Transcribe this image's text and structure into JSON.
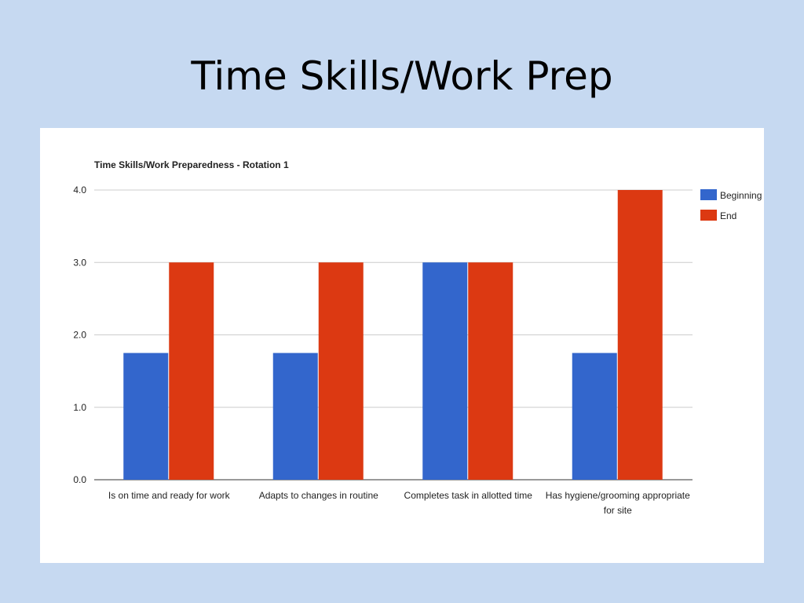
{
  "slide": {
    "title": "Time Skills/Work Prep"
  },
  "chart_data": {
    "type": "bar",
    "title": "Time Skills/Work Preparedness - Rotation 1",
    "categories": [
      [
        "Is on time and ready for work"
      ],
      [
        "Adapts to changes in routine"
      ],
      [
        "Completes task in allotted time"
      ],
      [
        "Has hygiene/grooming appropriate",
        "for site"
      ]
    ],
    "series": [
      {
        "name": "Beginning",
        "values": [
          1.75,
          1.75,
          3.0,
          1.75
        ],
        "color": "#3366cc"
      },
      {
        "name": "End",
        "values": [
          3.0,
          3.0,
          3.0,
          4.0
        ],
        "color": "#dc3912"
      }
    ],
    "ylim": [
      0,
      4
    ],
    "yticks": [
      "0.0",
      "1.0",
      "2.0",
      "3.0",
      "4.0"
    ],
    "grid": true,
    "legend_position": "right"
  }
}
